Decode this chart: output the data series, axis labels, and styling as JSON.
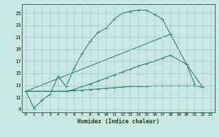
{
  "xlabel": "Humidex (Indice chaleur)",
  "bg_color": "#c8e8e0",
  "grid_color": "#a0c8c8",
  "line_color": "#1a6b5a",
  "xlim": [
    -0.5,
    23.5
  ],
  "ylim": [
    8.5,
    26.5
  ],
  "xticks": [
    0,
    1,
    2,
    3,
    4,
    5,
    6,
    7,
    8,
    9,
    10,
    11,
    12,
    13,
    14,
    15,
    16,
    17,
    18,
    19,
    20,
    21,
    22,
    23
  ],
  "yticks": [
    9,
    11,
    13,
    15,
    17,
    19,
    21,
    23,
    25
  ],
  "line1_x": [
    0,
    1,
    2,
    3,
    4,
    5,
    6,
    7,
    8,
    9,
    10,
    11,
    12,
    13,
    14,
    15,
    16,
    17,
    18
  ],
  "line1_y": [
    12.0,
    9.2,
    10.5,
    11.5,
    14.5,
    12.8,
    15.8,
    18.3,
    20.3,
    21.8,
    22.5,
    24.0,
    25.0,
    25.3,
    25.5,
    25.5,
    24.8,
    24.0,
    21.5
  ],
  "line2_x": [
    0,
    18,
    20,
    21
  ],
  "line2_y": [
    12.0,
    21.5,
    16.5,
    13.2
  ],
  "line3_x": [
    0,
    5,
    6,
    7,
    8,
    9,
    10,
    11,
    12,
    13,
    14,
    15,
    16,
    17,
    18,
    19,
    20,
    21,
    22
  ],
  "line3_y": [
    12.0,
    12.0,
    12.1,
    12.2,
    12.3,
    12.4,
    12.5,
    12.6,
    12.7,
    12.8,
    12.8,
    12.8,
    12.9,
    12.9,
    12.9,
    12.9,
    12.9,
    12.9,
    12.7
  ],
  "line4_x": [
    0,
    5,
    6,
    7,
    8,
    9,
    10,
    11,
    12,
    13,
    14,
    15,
    16,
    17,
    18,
    20,
    22
  ],
  "line4_y": [
    12.0,
    12.0,
    12.3,
    12.8,
    13.2,
    13.7,
    14.2,
    14.7,
    15.2,
    15.7,
    16.2,
    16.6,
    17.0,
    17.5,
    18.0,
    16.5,
    12.7
  ]
}
